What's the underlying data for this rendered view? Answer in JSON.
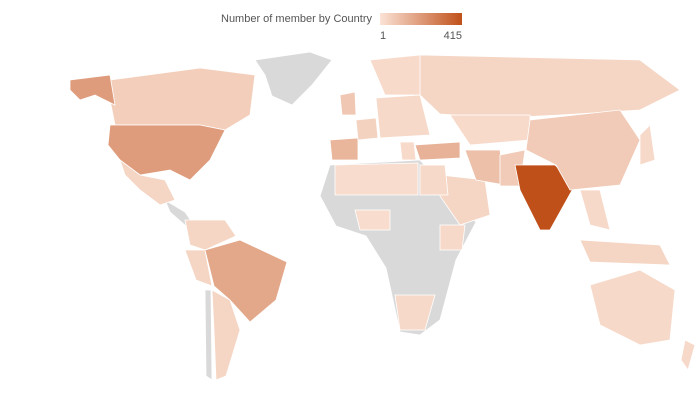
{
  "legend": {
    "title": "Number of member by Country",
    "min": 1,
    "max": 415,
    "color_low": "#fbe3d6",
    "color_high": "#c0501a"
  },
  "regions": [
    60,
    200,
    200,
    40,
    40,
    40,
    170,
    40,
    25,
    80,
    130,
    50,
    30,
    25,
    40,
    140,
    40,
    100,
    70,
    25,
    415,
    70,
    30,
    40,
    30,
    20,
    30,
    30,
    30,
    20,
    30,
    30
  ]
}
